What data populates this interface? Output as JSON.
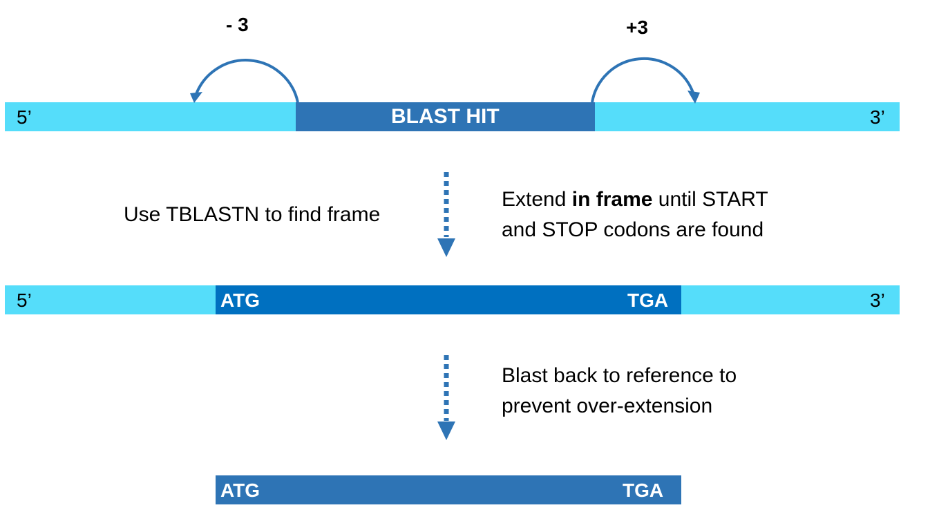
{
  "strand_top": {
    "five_prime": "5’",
    "three_prime": "3’",
    "hit_label": "BLAST HIT",
    "left_shift": "- 3",
    "right_shift": "+3"
  },
  "step1": {
    "left_text": "Use TBLASTN to find frame",
    "right_line1_pre": "Extend ",
    "right_line1_bold": "in frame",
    "right_line1_post": " until START",
    "right_line2": "and STOP codons are found"
  },
  "strand_middle": {
    "five_prime": "5’",
    "three_prime": "3’",
    "start_codon": "ATG",
    "stop_codon": "TGA"
  },
  "step2": {
    "line1": "Blast back to reference to",
    "line2": "prevent over-extension"
  },
  "strand_final": {
    "start_codon": "ATG",
    "stop_codon": "TGA"
  },
  "colors": {
    "flank": "#55ddfa",
    "blast_hit": "#2e74b5",
    "orf": "#0070c0",
    "arrow": "#2e74b5"
  },
  "icons": {
    "left_curved_arrow": "curved-arrow-left-icon",
    "right_curved_arrow": "curved-arrow-right-icon",
    "step_arrow": "dashed-down-arrow-icon"
  }
}
